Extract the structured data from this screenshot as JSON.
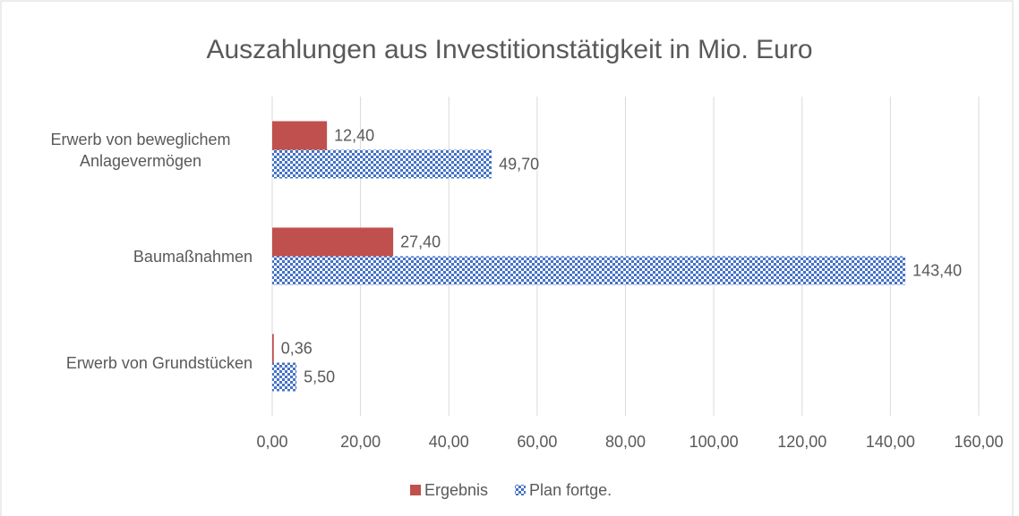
{
  "chart_data": {
    "type": "bar",
    "orientation": "horizontal",
    "title": "Auszahlungen aus Investitionstätigkeit in Mio. Euro",
    "categories": [
      "Erwerb von beweglichem Anlagevermögen",
      "Baumaßnahmen",
      "Erwerb von Grundstücken"
    ],
    "series": [
      {
        "name": "Ergebnis",
        "color": "#c0504d",
        "values": [
          12.4,
          27.4,
          0.36
        ],
        "value_labels": [
          "12,40",
          "27,40",
          "0,36"
        ]
      },
      {
        "name": "Plan fortge.",
        "color": "#4472c4",
        "pattern": "checkerboard",
        "values": [
          49.7,
          143.4,
          5.5
        ],
        "value_labels": [
          "49,70",
          "143,40",
          "5,50"
        ]
      }
    ],
    "xlim": [
      0,
      160
    ],
    "xticks": [
      {
        "value": 0,
        "label": "0,00"
      },
      {
        "value": 20,
        "label": "20,00"
      },
      {
        "value": 40,
        "label": "40,00"
      },
      {
        "value": 60,
        "label": "60,00"
      },
      {
        "value": 80,
        "label": "80,00"
      },
      {
        "value": 100,
        "label": "100,00"
      },
      {
        "value": 120,
        "label": "120,00"
      },
      {
        "value": 140,
        "label": "140,00"
      },
      {
        "value": 160,
        "label": "160,00"
      }
    ],
    "grid": true,
    "legend": "bottom"
  }
}
